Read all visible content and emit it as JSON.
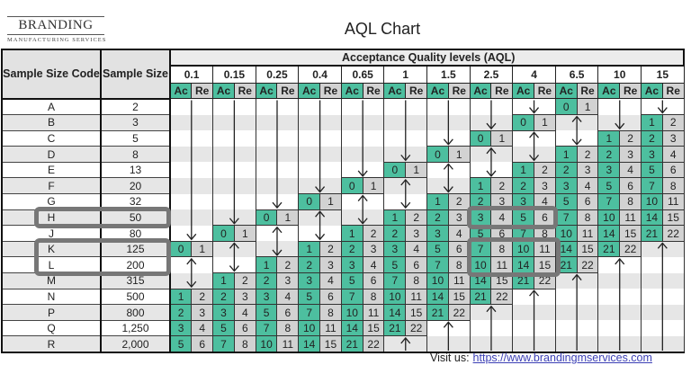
{
  "logo": {
    "name": "BRANDING",
    "subtitle": "MANUFACTURING SERVICES"
  },
  "chart_data": {
    "type": "table",
    "title": "AQL Chart",
    "columns": {
      "code_header": "Sample Size Code",
      "size_header": "Sample Size",
      "aql_header": "Acceptance Quality levels (AQL)",
      "aql_levels": [
        "0.1",
        "0.15",
        "0.25",
        "0.4",
        "0.65",
        "1",
        "1.5",
        "2.5",
        "4",
        "6.5",
        "10",
        "15"
      ],
      "ac_label": "Ac",
      "re_label": "Re"
    },
    "rows": [
      {
        "code": "A",
        "size": "2",
        "cells": [
          null,
          null,
          null,
          null,
          null,
          null,
          null,
          null,
          null,
          [
            0,
            1
          ],
          null,
          null
        ]
      },
      {
        "code": "B",
        "size": "3",
        "cells": [
          null,
          null,
          null,
          null,
          null,
          null,
          null,
          null,
          [
            0,
            1
          ],
          null,
          null,
          [
            1,
            2
          ]
        ]
      },
      {
        "code": "C",
        "size": "5",
        "cells": [
          null,
          null,
          null,
          null,
          null,
          null,
          null,
          [
            0,
            1
          ],
          null,
          null,
          [
            1,
            2
          ],
          [
            2,
            3
          ]
        ]
      },
      {
        "code": "D",
        "size": "8",
        "cells": [
          null,
          null,
          null,
          null,
          null,
          null,
          [
            0,
            1
          ],
          null,
          null,
          [
            1,
            2
          ],
          [
            2,
            3
          ],
          [
            3,
            4
          ]
        ]
      },
      {
        "code": "E",
        "size": "13",
        "cells": [
          null,
          null,
          null,
          null,
          null,
          [
            0,
            1
          ],
          null,
          null,
          [
            1,
            2
          ],
          [
            2,
            3
          ],
          [
            3,
            4
          ],
          [
            5,
            6
          ]
        ]
      },
      {
        "code": "F",
        "size": "20",
        "cells": [
          null,
          null,
          null,
          null,
          [
            0,
            1
          ],
          null,
          null,
          [
            1,
            2
          ],
          [
            2,
            3
          ],
          [
            3,
            4
          ],
          [
            5,
            6
          ],
          [
            7,
            8
          ]
        ]
      },
      {
        "code": "G",
        "size": "32",
        "cells": [
          null,
          null,
          null,
          [
            0,
            1
          ],
          null,
          null,
          [
            1,
            2
          ],
          [
            2,
            3
          ],
          [
            3,
            4
          ],
          [
            5,
            6
          ],
          [
            7,
            8
          ],
          [
            10,
            11
          ]
        ]
      },
      {
        "code": "H",
        "size": "50",
        "cells": [
          null,
          null,
          [
            0,
            1
          ],
          null,
          null,
          [
            1,
            2
          ],
          [
            2,
            3
          ],
          [
            3,
            4
          ],
          [
            5,
            6
          ],
          [
            7,
            8
          ],
          [
            10,
            11
          ],
          [
            14,
            15
          ]
        ]
      },
      {
        "code": "J",
        "size": "80",
        "cells": [
          null,
          [
            0,
            1
          ],
          null,
          null,
          [
            1,
            2
          ],
          [
            2,
            3
          ],
          [
            3,
            4
          ],
          [
            5,
            6
          ],
          [
            7,
            8
          ],
          [
            10,
            11
          ],
          [
            14,
            15
          ],
          [
            21,
            22
          ]
        ]
      },
      {
        "code": "K",
        "size": "125",
        "cells": [
          [
            0,
            1
          ],
          null,
          null,
          [
            1,
            2
          ],
          [
            2,
            3
          ],
          [
            3,
            4
          ],
          [
            5,
            6
          ],
          [
            7,
            8
          ],
          [
            10,
            11
          ],
          [
            14,
            15
          ],
          [
            21,
            22
          ],
          null
        ]
      },
      {
        "code": "L",
        "size": "200",
        "cells": [
          null,
          null,
          [
            1,
            2
          ],
          [
            2,
            3
          ],
          [
            3,
            4
          ],
          [
            5,
            6
          ],
          [
            7,
            8
          ],
          [
            10,
            11
          ],
          [
            14,
            15
          ],
          [
            21,
            22
          ],
          null,
          null
        ]
      },
      {
        "code": "M",
        "size": "315",
        "cells": [
          null,
          [
            1,
            2
          ],
          [
            2,
            3
          ],
          [
            3,
            4
          ],
          [
            5,
            6
          ],
          [
            7,
            8
          ],
          [
            10,
            11
          ],
          [
            14,
            15
          ],
          [
            21,
            22
          ],
          null,
          null,
          null
        ]
      },
      {
        "code": "N",
        "size": "500",
        "cells": [
          [
            1,
            2
          ],
          [
            2,
            3
          ],
          [
            3,
            4
          ],
          [
            5,
            6
          ],
          [
            7,
            8
          ],
          [
            10,
            11
          ],
          [
            14,
            15
          ],
          [
            21,
            22
          ],
          null,
          null,
          null,
          null
        ]
      },
      {
        "code": "P",
        "size": "800",
        "cells": [
          [
            2,
            3
          ],
          [
            3,
            4
          ],
          [
            5,
            6
          ],
          [
            7,
            8
          ],
          [
            10,
            11
          ],
          [
            14,
            15
          ],
          [
            21,
            22
          ],
          null,
          null,
          null,
          null,
          null
        ]
      },
      {
        "code": "Q",
        "size": "1,250",
        "cells": [
          [
            3,
            4
          ],
          [
            5,
            6
          ],
          [
            7,
            8
          ],
          [
            10,
            11
          ],
          [
            14,
            15
          ],
          [
            21,
            22
          ],
          null,
          null,
          null,
          null,
          null,
          null
        ]
      },
      {
        "code": "R",
        "size": "2,000",
        "cells": [
          [
            5,
            6
          ],
          [
            7,
            8
          ],
          [
            10,
            11
          ],
          [
            14,
            15
          ],
          [
            21,
            22
          ],
          null,
          null,
          null,
          null,
          null,
          null,
          null
        ]
      }
    ],
    "highlighted_rows": [
      "H",
      "K",
      "L"
    ],
    "highlighted_aql": [
      "2.5",
      "4"
    ],
    "colors": {
      "ac": "#4dbf9f",
      "re": "#d2d2d2",
      "stripe": "#e6e6e6",
      "highlight": "#777777"
    }
  },
  "footer": {
    "visit_label": "Visit us:",
    "link": "https://www.brandingmservices.com"
  }
}
